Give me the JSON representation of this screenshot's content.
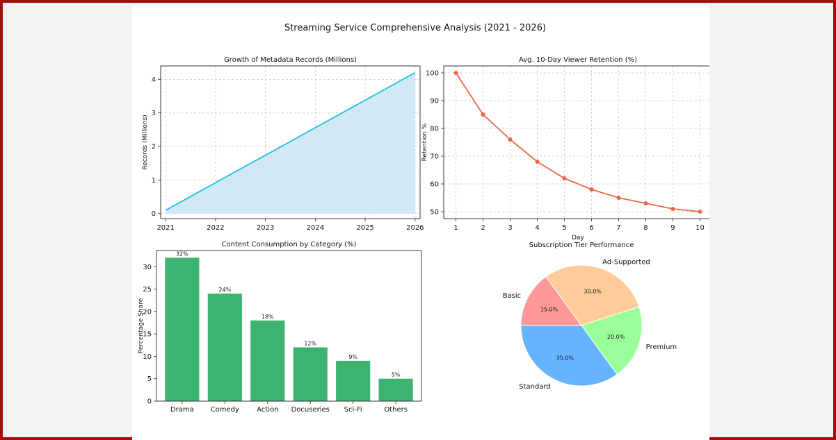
{
  "page": {
    "title": "Streaming Service Comprehensive Analysis (2021 - 2026)"
  },
  "chart_data": [
    {
      "type": "area",
      "title": "Growth of Metadata Records (Millions)",
      "xlabel": "",
      "ylabel": "Records (Millions)",
      "x": [
        2021,
        2026
      ],
      "values": [
        0.1,
        4.2
      ],
      "xticks": [
        2021,
        2022,
        2023,
        2024,
        2025,
        2026
      ],
      "yticks": [
        0,
        1,
        2,
        3,
        4
      ],
      "xlim": [
        2020.9,
        2026.1
      ],
      "ylim": [
        -0.15,
        4.4
      ],
      "grid": true,
      "colors": {
        "line": "#1ec0e6",
        "fill": "#cfe8f3"
      }
    },
    {
      "type": "line",
      "title": "Avg. 10-Day Viewer Retention (%)",
      "xlabel": "Day",
      "ylabel": "Retention %",
      "x": [
        1,
        2,
        3,
        4,
        5,
        6,
        7,
        8,
        9,
        10
      ],
      "values": [
        100,
        85,
        76,
        68,
        62,
        58,
        55,
        53,
        51,
        50
      ],
      "xticks": [
        1,
        2,
        3,
        4,
        5,
        6,
        7,
        8,
        9,
        10
      ],
      "yticks": [
        50,
        60,
        70,
        80,
        90,
        100
      ],
      "xlim": [
        0.55,
        10.45
      ],
      "ylim": [
        47.5,
        102.5
      ],
      "grid": true,
      "colors": {
        "line": "#ee6542"
      }
    },
    {
      "type": "bar",
      "title": "Content Consumption by Category (%)",
      "xlabel": "",
      "ylabel": "Percentage Share",
      "categories": [
        "Drama",
        "Comedy",
        "Action",
        "Docuseries",
        "Sci-Fi",
        "Others"
      ],
      "values": [
        32,
        24,
        18,
        12,
        9,
        5
      ],
      "labels": [
        "32%",
        "24%",
        "18%",
        "12%",
        "9%",
        "5%"
      ],
      "yticks": [
        0,
        5,
        10,
        15,
        20,
        25,
        30
      ],
      "ylim": [
        0,
        33.6
      ],
      "grid": false,
      "colors": {
        "bar": "#3cb371"
      }
    },
    {
      "type": "pie",
      "title": "Subscription Tier Performance",
      "categories": [
        "Basic",
        "Ad-Supported",
        "Premium",
        "Standard"
      ],
      "values": [
        15.0,
        30.0,
        20.0,
        35.0
      ],
      "labels": [
        "15.0%",
        "30.0%",
        "20.0%",
        "35.0%"
      ],
      "colors": [
        "#ff9999",
        "#ffcc99",
        "#99ff99",
        "#66b3ff"
      ]
    }
  ]
}
